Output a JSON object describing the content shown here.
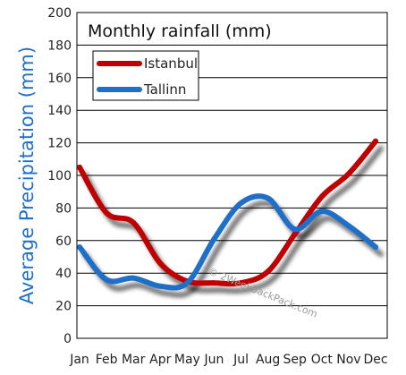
{
  "chart_data": {
    "type": "line",
    "title": "Monthly rainfall (mm)",
    "ylabel": "Average Precipitation (mm)",
    "xlabel": "",
    "categories": [
      "Jan",
      "Feb",
      "Mar",
      "Apr",
      "May",
      "Jun",
      "Jul",
      "Aug",
      "Sep",
      "Oct",
      "Nov",
      "Dec"
    ],
    "ylim": [
      0,
      200
    ],
    "yticks": [
      0,
      20,
      40,
      60,
      80,
      100,
      120,
      140,
      160,
      180,
      200
    ],
    "grid": true,
    "legend_position": "top-left",
    "series": [
      {
        "name": "Istanbul",
        "color": "#c00000",
        "values": [
          105,
          77,
          71,
          46,
          35,
          34,
          34,
          41,
          64,
          87,
          101,
          121
        ]
      },
      {
        "name": "Tallinn",
        "color": "#1e6fc8",
        "values": [
          56,
          36,
          37,
          32,
          34,
          61,
          83,
          86,
          67,
          78,
          69,
          56
        ]
      }
    ],
    "watermark": "© 2WeekBackPack.com",
    "ylabel_color": "#1e6fc8"
  }
}
